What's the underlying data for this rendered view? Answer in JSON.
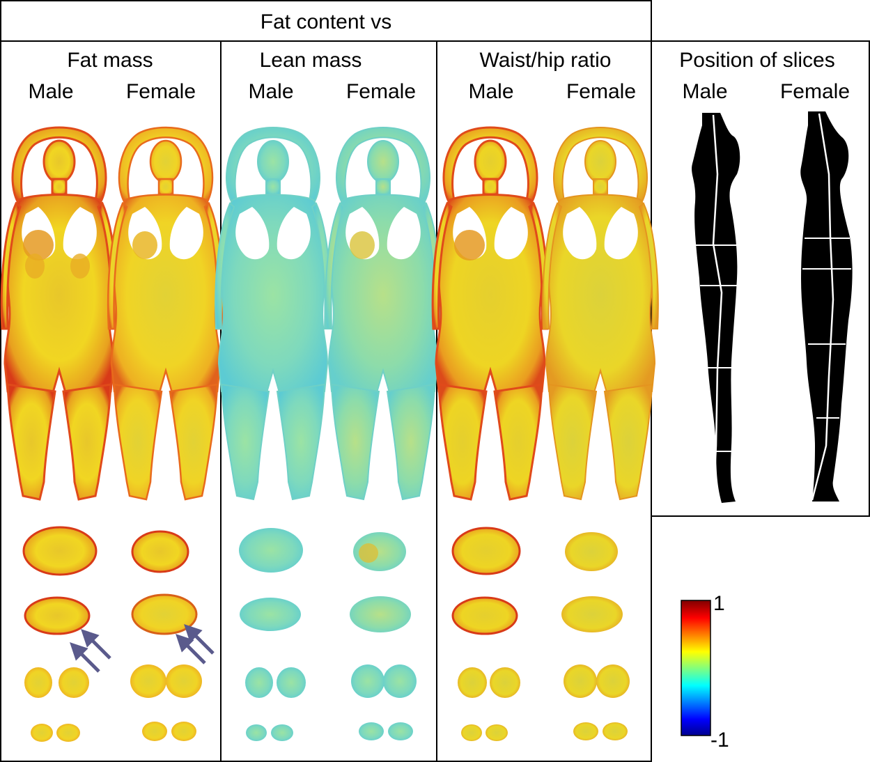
{
  "header": {
    "title": "Fat content vs"
  },
  "panels": [
    {
      "title": "Fat mass",
      "male": "Male",
      "female": "Female"
    },
    {
      "title": "Lean mass",
      "male": "Male",
      "female": "Female"
    },
    {
      "title": "Waist/hip ratio",
      "male": "Male",
      "female": "Female"
    },
    {
      "title": "Position of slices",
      "male": "Male",
      "female": "Female"
    }
  ],
  "colorbar": {
    "max_label": "1",
    "min_label": "-1",
    "range": [
      -1,
      1
    ],
    "colormap": [
      "#00008f",
      "#0000ff",
      "#00ffff",
      "#ffff00",
      "#ff0000",
      "#800000"
    ]
  },
  "colors": {
    "fat_mass": "#f2d21a",
    "lean_mass": "#86e0b4",
    "waist_hip": "#efd41e",
    "hot_edge": "#e4401b",
    "arrow": "#5a5a8c"
  }
}
